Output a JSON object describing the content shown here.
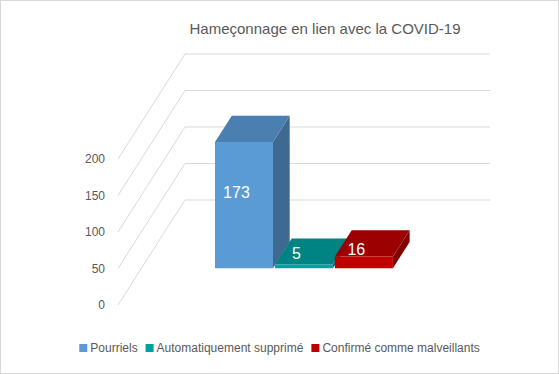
{
  "chart_data": {
    "type": "bar",
    "title": "Hameçonnage en lien avec la COVID-19",
    "categories": [
      "Pourriels",
      "Automatiquement supprimé",
      "Confirmé comme malveillants"
    ],
    "values": [
      173,
      5,
      16
    ],
    "colors": [
      "#5b9bd5",
      "#00a0a0",
      "#c00000"
    ],
    "ylim": [
      0,
      200
    ],
    "yticks": [
      0,
      50,
      100,
      150,
      200
    ],
    "grid": true,
    "legend": "bottom",
    "data_labels": true,
    "tick_labels": "y"
  }
}
